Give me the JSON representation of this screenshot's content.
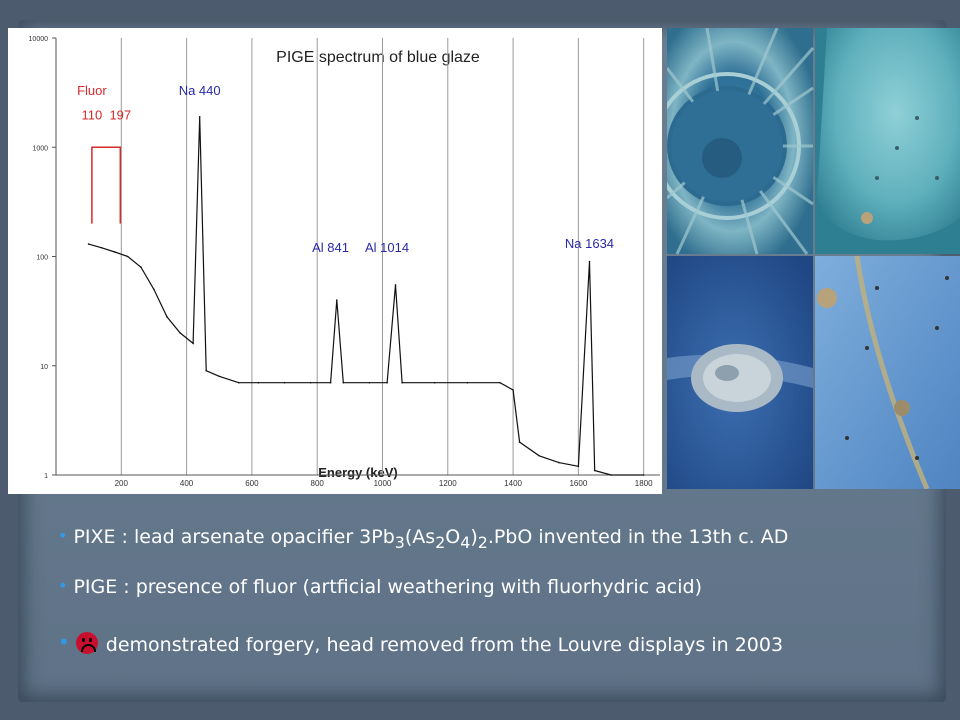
{
  "chart_data": {
    "type": "line",
    "title": "PIGE spectrum of blue glaze",
    "xlabel": "Energy (keV)",
    "ylabel": "",
    "xlim": [
      0,
      1850
    ],
    "ylim": [
      1,
      10000
    ],
    "yscale": "log",
    "x_ticks": [
      200,
      400,
      600,
      800,
      1000,
      1200,
      1400,
      1600,
      1800
    ],
    "y_ticks": [
      1,
      10,
      100,
      1000,
      10000
    ],
    "y_tick_labels": [
      "1",
      "10",
      "100",
      "1000",
      "10000"
    ],
    "grid": "vertical",
    "annotations": [
      {
        "text": "Fluor",
        "x": 110,
        "y": 3000,
        "color": "#d42b2b"
      },
      {
        "text": "110",
        "x": 110,
        "y": 1800,
        "color": "#d42b2b"
      },
      {
        "text": "197",
        "x": 197,
        "y": 1800,
        "color": "#d42b2b"
      },
      {
        "text": "Na 440",
        "x": 440,
        "y": 3000,
        "color": "#2a2aa8"
      },
      {
        "text": "Al 841",
        "x": 841,
        "y": 110,
        "color": "#2a2aa8"
      },
      {
        "text": "Al 1014",
        "x": 1014,
        "y": 110,
        "color": "#2a2aa8"
      },
      {
        "text": "Na 1634",
        "x": 1634,
        "y": 120,
        "color": "#2a2aa8"
      }
    ],
    "series": [
      {
        "values": [
          [
            100,
            130
          ],
          [
            140,
            120
          ],
          [
            180,
            110
          ],
          [
            220,
            100
          ],
          [
            260,
            80
          ],
          [
            300,
            50
          ],
          [
            340,
            28
          ],
          [
            380,
            20
          ],
          [
            420,
            16
          ],
          [
            440,
            1900
          ],
          [
            460,
            9
          ],
          [
            500,
            8
          ],
          [
            560,
            7
          ],
          [
            620,
            7
          ],
          [
            700,
            7
          ],
          [
            780,
            7
          ],
          [
            841,
            7
          ],
          [
            860,
            40
          ],
          [
            880,
            7
          ],
          [
            960,
            7
          ],
          [
            1014,
            7
          ],
          [
            1040,
            55
          ],
          [
            1060,
            7
          ],
          [
            1160,
            7
          ],
          [
            1260,
            7
          ],
          [
            1360,
            7
          ],
          [
            1400,
            6
          ],
          [
            1420,
            2
          ],
          [
            1480,
            1.5
          ],
          [
            1540,
            1.3
          ],
          [
            1600,
            1.2
          ],
          [
            1634,
            90
          ],
          [
            1650,
            1.1
          ],
          [
            1700,
            1
          ],
          [
            1800,
            1
          ]
        ]
      }
    ]
  },
  "bullets": {
    "pixe": {
      "pre": "PIXE : lead arsenate opacifier 3Pb",
      "sub1": "3",
      "mid1": "(As",
      "sub2": "2",
      "mid2": "O",
      "sub3": "4",
      "mid3": ")",
      "sub4": "2",
      "post": ".PbO invented in the 13th c. AD"
    },
    "pige": "PIGE : presence of fluor (artficial weathering with fluorhydric acid)",
    "verdict": "demonstrated forgery, head removed from the Louvre displays in 2003"
  },
  "colors": {
    "bullet": "#2f9be8",
    "annotation_red": "#d42b2b",
    "annotation_blue": "#2a2aa8",
    "frown_face": "#c8102e"
  },
  "icons": {
    "verdict": "frowning-face-icon"
  },
  "photos": [
    {
      "name": "radial-rosette-photo",
      "base": "#3d7fa3"
    },
    {
      "name": "pale-blue-glaze-drop-photo",
      "base": "#6cb5c2"
    },
    {
      "name": "weathered-glaze-crater-photo",
      "base": "#2f5e9e"
    },
    {
      "name": "speckled-light-blue-glaze-photo",
      "base": "#5d8fc7"
    }
  ]
}
